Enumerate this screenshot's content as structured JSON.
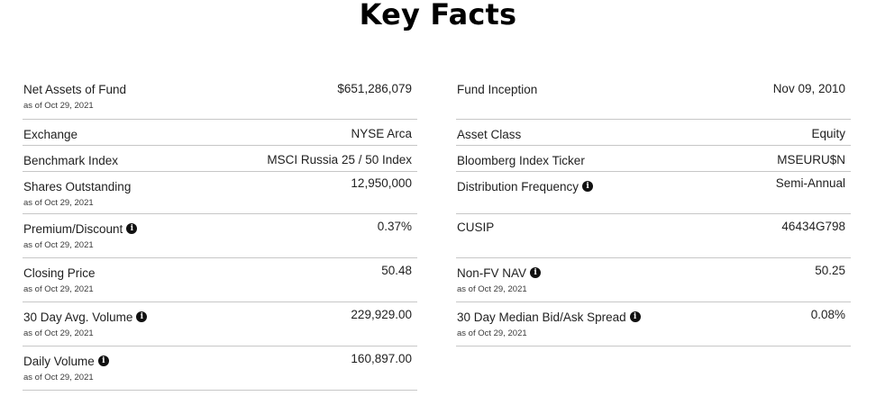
{
  "page": {
    "title": "Key Facts"
  },
  "icons": {
    "info": "info-icon",
    "info_glyph": "i"
  },
  "left_column": [
    {
      "label": "Net Assets of Fund",
      "value": "$651,286,079",
      "as_of": "as of Oct 29, 2021",
      "info": false
    },
    {
      "label": "Exchange",
      "value": "NYSE Arca",
      "as_of": "",
      "info": false
    },
    {
      "label": "Benchmark Index",
      "value": "MSCI Russia 25 / 50 Index",
      "as_of": "",
      "info": false
    },
    {
      "label": "Shares Outstanding",
      "value": "12,950,000",
      "as_of": "as of Oct 29, 2021",
      "info": false
    },
    {
      "label": "Premium/Discount",
      "value": "0.37%",
      "as_of": "as of Oct 29, 2021",
      "info": true
    },
    {
      "label": "Closing Price",
      "value": "50.48",
      "as_of": "as of Oct 29, 2021",
      "info": false
    },
    {
      "label": "30 Day Avg. Volume",
      "value": "229,929.00",
      "as_of": "as of Oct 29, 2021",
      "info": true
    },
    {
      "label": "Daily Volume",
      "value": "160,897.00",
      "as_of": "as of Oct 29, 2021",
      "info": true
    }
  ],
  "right_column": [
    {
      "label": "Fund Inception",
      "value": "Nov 09, 2010",
      "as_of": "",
      "info": false
    },
    {
      "label": "Asset Class",
      "value": "Equity",
      "as_of": "",
      "info": false
    },
    {
      "label": "Bloomberg Index Ticker",
      "value": "MSEURU$N",
      "as_of": "",
      "info": false
    },
    {
      "label": "Distribution Frequency",
      "value": "Semi-Annual",
      "as_of": "",
      "info": true
    },
    {
      "label": "CUSIP",
      "value": "46434G798",
      "as_of": "",
      "info": false
    },
    {
      "label": "Non-FV NAV",
      "value": "50.25",
      "as_of": "as of Oct 29, 2021",
      "info": true
    },
    {
      "label": "30 Day Median Bid/Ask Spread",
      "value": "0.08%",
      "as_of": "as of Oct 29, 2021",
      "info": true
    }
  ]
}
